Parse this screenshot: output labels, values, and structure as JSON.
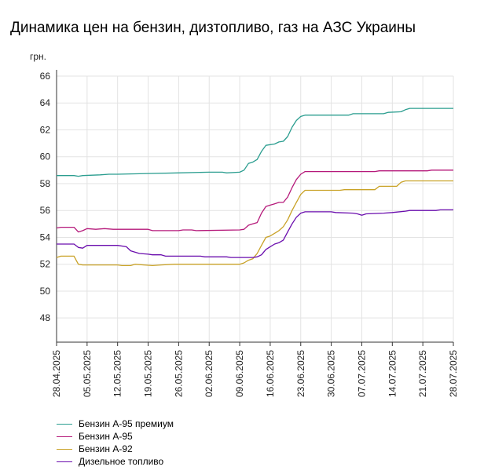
{
  "chart_data": {
    "type": "line",
    "title": "Динамика цен на бензин, дизтопливо, газ на АЗС Украины",
    "ylabel": "грн.",
    "ylim": [
      46.2,
      66
    ],
    "yticks": [
      48,
      50,
      52,
      54,
      56,
      58,
      60,
      62,
      64,
      66
    ],
    "xlim": [
      "2025-04-28",
      "2025-07-28"
    ],
    "xticks": [
      "28.04.2025",
      "05.05.2025",
      "12.05.2025",
      "19.05.2025",
      "26.05.2025",
      "02.06.2025",
      "09.06.2025",
      "16.06.2025",
      "23.06.2025",
      "30.06.2025",
      "07.07.2025",
      "14.07.2025",
      "21.07.2025",
      "28.07.2025"
    ],
    "grid": true,
    "legend_position": "bottom-left",
    "series": [
      {
        "name": "Бензин А-95 премиум",
        "color": "#2a9d8f",
        "points": [
          [
            "2025-04-28",
            58.6
          ],
          [
            "2025-05-02",
            58.6
          ],
          [
            "2025-05-03",
            58.55
          ],
          [
            "2025-05-04",
            58.6
          ],
          [
            "2025-05-08",
            58.65
          ],
          [
            "2025-05-10",
            58.7
          ],
          [
            "2025-05-12",
            58.7
          ],
          [
            "2025-05-19",
            58.75
          ],
          [
            "2025-05-26",
            58.8
          ],
          [
            "2025-06-02",
            58.85
          ],
          [
            "2025-06-05",
            58.85
          ],
          [
            "2025-06-06",
            58.8
          ],
          [
            "2025-06-09",
            58.85
          ],
          [
            "2025-06-10",
            59.0
          ],
          [
            "2025-06-11",
            59.5
          ],
          [
            "2025-06-12",
            59.6
          ],
          [
            "2025-06-13",
            59.8
          ],
          [
            "2025-06-14",
            60.4
          ],
          [
            "2025-06-15",
            60.85
          ],
          [
            "2025-06-17",
            60.95
          ],
          [
            "2025-06-18",
            61.1
          ],
          [
            "2025-06-19",
            61.15
          ],
          [
            "2025-06-20",
            61.5
          ],
          [
            "2025-06-21",
            62.2
          ],
          [
            "2025-06-22",
            62.7
          ],
          [
            "2025-06-23",
            63.0
          ],
          [
            "2025-06-24",
            63.1
          ],
          [
            "2025-06-30",
            63.1
          ],
          [
            "2025-07-04",
            63.1
          ],
          [
            "2025-07-05",
            63.2
          ],
          [
            "2025-07-12",
            63.2
          ],
          [
            "2025-07-13",
            63.3
          ],
          [
            "2025-07-16",
            63.35
          ],
          [
            "2025-07-17",
            63.5
          ],
          [
            "2025-07-18",
            63.6
          ],
          [
            "2025-07-28",
            63.6
          ]
        ]
      },
      {
        "name": "Бензин А-95",
        "color": "#b5197a",
        "points": [
          [
            "2025-04-28",
            54.7
          ],
          [
            "2025-04-29",
            54.75
          ],
          [
            "2025-05-02",
            54.75
          ],
          [
            "2025-05-03",
            54.4
          ],
          [
            "2025-05-04",
            54.5
          ],
          [
            "2025-05-05",
            54.65
          ],
          [
            "2025-05-07",
            54.6
          ],
          [
            "2025-05-09",
            54.65
          ],
          [
            "2025-05-11",
            54.6
          ],
          [
            "2025-05-19",
            54.6
          ],
          [
            "2025-05-20",
            54.5
          ],
          [
            "2025-05-26",
            54.5
          ],
          [
            "2025-05-27",
            54.55
          ],
          [
            "2025-05-29",
            54.55
          ],
          [
            "2025-05-30",
            54.5
          ],
          [
            "2025-06-09",
            54.55
          ],
          [
            "2025-06-10",
            54.6
          ],
          [
            "2025-06-11",
            54.9
          ],
          [
            "2025-06-12",
            55.0
          ],
          [
            "2025-06-13",
            55.1
          ],
          [
            "2025-06-14",
            55.8
          ],
          [
            "2025-06-15",
            56.3
          ],
          [
            "2025-06-16",
            56.4
          ],
          [
            "2025-06-17",
            56.5
          ],
          [
            "2025-06-18",
            56.6
          ],
          [
            "2025-06-19",
            56.6
          ],
          [
            "2025-06-20",
            57.0
          ],
          [
            "2025-06-21",
            57.7
          ],
          [
            "2025-06-22",
            58.3
          ],
          [
            "2025-06-23",
            58.7
          ],
          [
            "2025-06-24",
            58.9
          ],
          [
            "2025-07-10",
            58.9
          ],
          [
            "2025-07-11",
            58.95
          ],
          [
            "2025-07-22",
            58.95
          ],
          [
            "2025-07-23",
            59.0
          ],
          [
            "2025-07-28",
            59.0
          ]
        ]
      },
      {
        "name": "Бензин А-92",
        "color": "#c9a227",
        "points": [
          [
            "2025-04-28",
            52.5
          ],
          [
            "2025-04-29",
            52.6
          ],
          [
            "2025-05-02",
            52.6
          ],
          [
            "2025-05-03",
            52.0
          ],
          [
            "2025-05-04",
            51.95
          ],
          [
            "2025-05-12",
            51.95
          ],
          [
            "2025-05-13",
            51.9
          ],
          [
            "2025-05-15",
            51.9
          ],
          [
            "2025-05-16",
            52.0
          ],
          [
            "2025-05-18",
            51.95
          ],
          [
            "2025-05-20",
            51.9
          ],
          [
            "2025-05-22",
            51.95
          ],
          [
            "2025-05-25",
            52.0
          ],
          [
            "2025-06-09",
            52.0
          ],
          [
            "2025-06-10",
            52.1
          ],
          [
            "2025-06-11",
            52.3
          ],
          [
            "2025-06-12",
            52.4
          ],
          [
            "2025-06-13",
            52.8
          ],
          [
            "2025-06-14",
            53.4
          ],
          [
            "2025-06-15",
            54.0
          ],
          [
            "2025-06-16",
            54.1
          ],
          [
            "2025-06-17",
            54.3
          ],
          [
            "2025-06-18",
            54.5
          ],
          [
            "2025-06-19",
            54.8
          ],
          [
            "2025-06-20",
            55.3
          ],
          [
            "2025-06-21",
            56.0
          ],
          [
            "2025-06-22",
            56.6
          ],
          [
            "2025-06-23",
            57.2
          ],
          [
            "2025-06-24",
            57.5
          ],
          [
            "2025-07-02",
            57.5
          ],
          [
            "2025-07-03",
            57.55
          ],
          [
            "2025-07-10",
            57.55
          ],
          [
            "2025-07-11",
            57.8
          ],
          [
            "2025-07-15",
            57.8
          ],
          [
            "2025-07-16",
            58.1
          ],
          [
            "2025-07-17",
            58.2
          ],
          [
            "2025-07-28",
            58.2
          ]
        ]
      },
      {
        "name": "Дизельное топливо",
        "color": "#6a0dad",
        "points": [
          [
            "2025-04-28",
            53.5
          ],
          [
            "2025-05-02",
            53.5
          ],
          [
            "2025-05-03",
            53.25
          ],
          [
            "2025-05-04",
            53.2
          ],
          [
            "2025-05-05",
            53.4
          ],
          [
            "2025-05-12",
            53.4
          ],
          [
            "2025-05-14",
            53.3
          ],
          [
            "2025-05-15",
            53.0
          ],
          [
            "2025-05-17",
            52.8
          ],
          [
            "2025-05-19",
            52.75
          ],
          [
            "2025-05-20",
            52.7
          ],
          [
            "2025-05-22",
            52.7
          ],
          [
            "2025-05-23",
            52.6
          ],
          [
            "2025-05-31",
            52.6
          ],
          [
            "2025-06-01",
            52.55
          ],
          [
            "2025-06-06",
            52.55
          ],
          [
            "2025-06-07",
            52.5
          ],
          [
            "2025-06-12",
            52.5
          ],
          [
            "2025-06-13",
            52.55
          ],
          [
            "2025-06-14",
            52.7
          ],
          [
            "2025-06-15",
            53.1
          ],
          [
            "2025-06-16",
            53.3
          ],
          [
            "2025-06-17",
            53.5
          ],
          [
            "2025-06-18",
            53.6
          ],
          [
            "2025-06-19",
            53.8
          ],
          [
            "2025-06-20",
            54.4
          ],
          [
            "2025-06-21",
            55.0
          ],
          [
            "2025-06-22",
            55.5
          ],
          [
            "2025-06-23",
            55.8
          ],
          [
            "2025-06-24",
            55.9
          ],
          [
            "2025-06-30",
            55.9
          ],
          [
            "2025-07-01",
            55.85
          ],
          [
            "2025-07-05",
            55.8
          ],
          [
            "2025-07-06",
            55.75
          ],
          [
            "2025-07-07",
            55.65
          ],
          [
            "2025-07-08",
            55.75
          ],
          [
            "2025-07-12",
            55.8
          ],
          [
            "2025-07-14",
            55.85
          ],
          [
            "2025-07-17",
            55.95
          ],
          [
            "2025-07-18",
            56.0
          ],
          [
            "2025-07-24",
            56.0
          ],
          [
            "2025-07-25",
            56.05
          ],
          [
            "2025-07-28",
            56.05
          ]
        ]
      }
    ]
  }
}
